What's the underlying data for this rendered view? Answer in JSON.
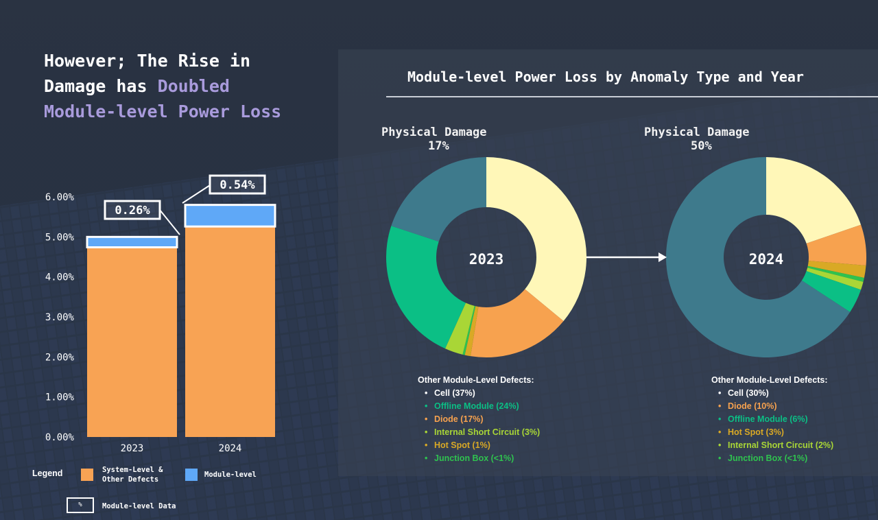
{
  "headline": {
    "line1": "However; The Rise in",
    "line2_plain": "Damage has ",
    "line2_accent": "Doubled",
    "line3_accent": "Module-level Power Loss"
  },
  "colors": {
    "system_level": "#f8a354",
    "module_level": "#5fa8f7",
    "accent_text": "#a99bdc",
    "physical_damage": "#3e7a8c",
    "cell": "#fff7b8",
    "diode": "#f7a24f",
    "offline_module": "#0bbf85",
    "internal_short_circuit": "#a9d636",
    "hot_spot": "#d9a925",
    "junction_box": "#2fc24f"
  },
  "chart_data": [
    {
      "type": "bar",
      "stacked": true,
      "categories": [
        "2023",
        "2024"
      ],
      "series": [
        {
          "name": "System-Level & Other Defects",
          "values": [
            4.74,
            5.26
          ]
        },
        {
          "name": "Module-level",
          "values": [
            0.26,
            0.54
          ]
        }
      ],
      "annotations": [
        "0.26%",
        "0.54%"
      ],
      "ylim": [
        0,
        6
      ],
      "yticks": [
        "0.00%",
        "1.00%",
        "2.00%",
        "3.00%",
        "4.00%",
        "5.00%",
        "6.00%"
      ],
      "grid": false,
      "legend": {
        "title": "Legend",
        "items": [
          "System-Level & Other Defects",
          "Module-level"
        ],
        "label_lines": [
          [
            "System-Level &",
            "Other Defects"
          ],
          [
            "Module-level"
          ]
        ],
        "box_symbol": "%",
        "box_label": "Module-level Data"
      }
    },
    {
      "type": "pie",
      "title": "Module-level Power Loss by Anomaly Type and Year",
      "center_label": "2023",
      "physical_damage_label": "Physical Damage",
      "physical_damage_pct": "17%",
      "labels": [
        "Cell",
        "Diode",
        "Hot Spot",
        "Junction Box",
        "Internal Short Circuit",
        "Offline Module",
        "Physical Damage"
      ],
      "values": [
        30.7,
        14.1,
        0.8,
        0.3,
        2.5,
        19.9,
        17.0
      ],
      "defects_header": "Other Module-Level Defects:",
      "defects": [
        {
          "label": "Cell (37%)",
          "key": "cell"
        },
        {
          "label": "Offline Module (24%)",
          "key": "offline_module"
        },
        {
          "label": "Diode (17%)",
          "key": "diode"
        },
        {
          "label": "Internal Short Circuit (3%)",
          "key": "internal_short_circuit"
        },
        {
          "label": "Hot Spot (1%)",
          "key": "hot_spot"
        },
        {
          "label": "Junction Box (<1%)",
          "key": "junction_box"
        }
      ]
    },
    {
      "type": "pie",
      "center_label": "2024",
      "physical_damage_label": "Physical Damage",
      "physical_damage_pct": "50%",
      "labels": [
        "Cell",
        "Diode",
        "Hot Spot",
        "Junction Box",
        "Internal Short Circuit",
        "Offline Module",
        "Physical Damage"
      ],
      "values": [
        15,
        5,
        1.5,
        0.5,
        1,
        3,
        50
      ],
      "defects_header": "Other Module-Level Defects:",
      "defects": [
        {
          "label": "Cell (30%)",
          "key": "cell"
        },
        {
          "label": "Diode (10%)",
          "key": "diode"
        },
        {
          "label": "Offline Module (6%)",
          "key": "offline_module"
        },
        {
          "label": "Hot Spot (3%)",
          "key": "hot_spot"
        },
        {
          "label": "Internal Short Circuit (2%)",
          "key": "internal_short_circuit"
        },
        {
          "label": "Junction Box (<1%)",
          "key": "junction_box"
        }
      ]
    }
  ]
}
